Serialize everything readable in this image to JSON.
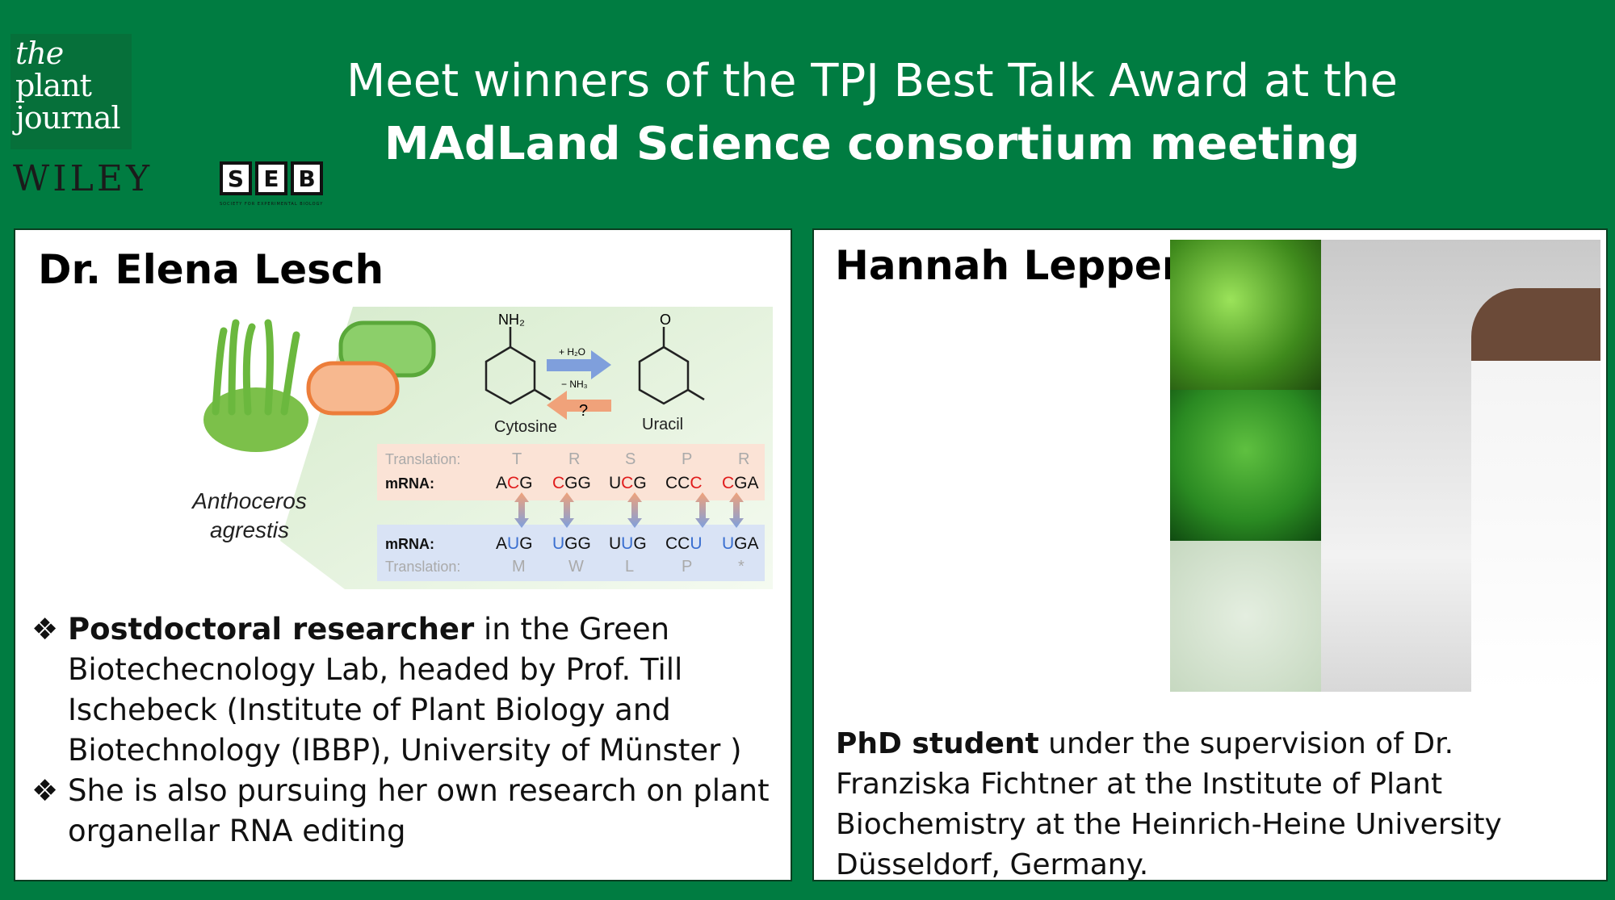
{
  "header": {
    "logo_text": [
      "the",
      "plant",
      "journal"
    ],
    "publisher": "WILEY",
    "seb_letters": [
      "S",
      "E",
      "B"
    ],
    "seb_subtitle": "SOCIETY FOR EXPERIMENTAL BIOLOGY",
    "title_line1": "Meet winners of the TPJ Best Talk Award at the",
    "title_line2": "MAdLand Science consortium meeting"
  },
  "left": {
    "name": "Dr. Elena Lesch",
    "diagram": {
      "species_line1": "Anthoceros",
      "species_line2": "agrestis",
      "nh2": "NH₂",
      "cytosine": "Cytosine",
      "uracil": "Uracil",
      "forward": "+ H₂O",
      "forward2": "− NH₃",
      "reverse": "?",
      "top_translation_label": "Translation:",
      "top_mrna_label": "mRNA:",
      "top_aa": [
        "T",
        "R",
        "S",
        "P",
        "R"
      ],
      "top_codons": [
        "ACG",
        "CGG",
        "UCG",
        "CCC",
        "CGA"
      ],
      "bottom_mrna_label": "mRNA:",
      "bottom_translation_label": "Translation:",
      "bottom_codons": [
        "AUG",
        "UGG",
        "UUG",
        "CCU",
        "UGA"
      ],
      "bottom_aa": [
        "M",
        "W",
        "L",
        "P",
        "*"
      ],
      "edited_pos": [
        1,
        0,
        1,
        2,
        0
      ]
    },
    "bullets": [
      {
        "bold": "Postdoctoral researcher",
        "text": " in the Green Biotechecnology Lab, headed by Prof. Till Ischebeck (Institute of Plant Biology and Biotechnology (IBBP), University of Münster )"
      },
      {
        "bold": "",
        "text": "She is also pursuing her own research on plant organellar RNA editing"
      }
    ],
    "bullet_icon": "diamond-bullet-icon"
  },
  "right": {
    "name": "Hannah Lepper",
    "desc_bold": "PhD student",
    "desc": " under the supervision of Dr. Franziska Fichtner at the Institute of Plant Biochemistry at the Heinrich-Heine University Düsseldorf, Germany."
  },
  "colors": {
    "background": "#007c41",
    "edit_red": "#e01b1b",
    "edit_blue": "#3a6fd0"
  }
}
